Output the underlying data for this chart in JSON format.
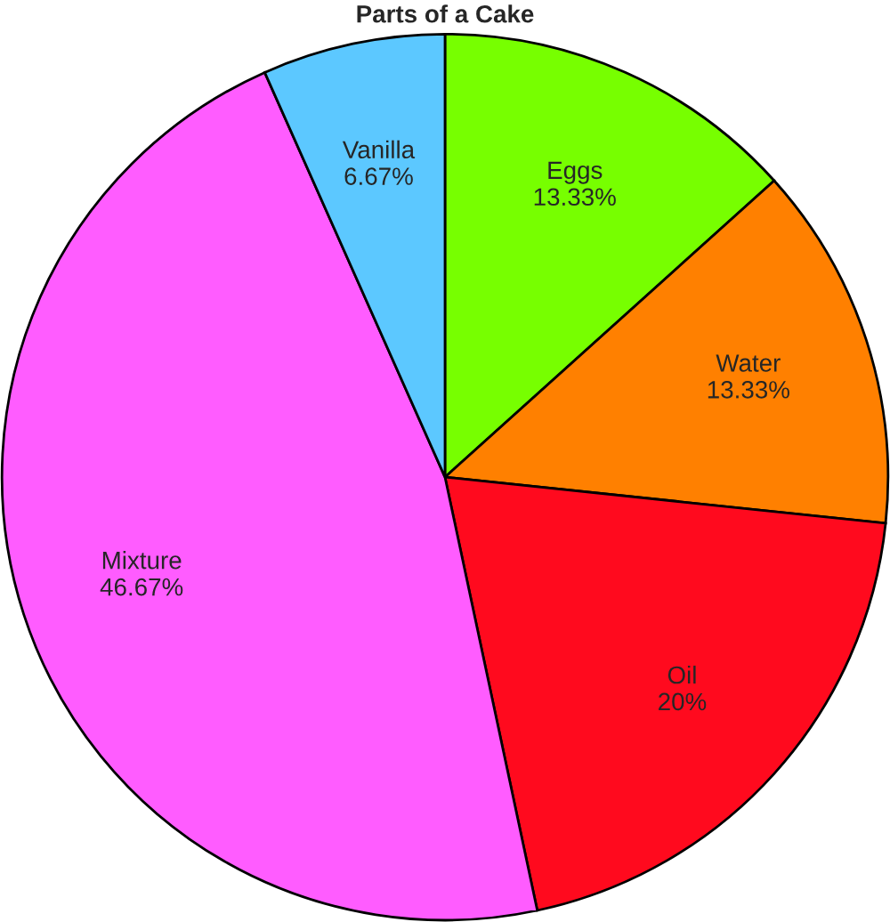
{
  "chart_data": {
    "type": "pie",
    "title": "Parts of a Cake",
    "categories": [
      "Eggs",
      "Water",
      "Oil",
      "Mixture",
      "Vanilla"
    ],
    "values": [
      13.33,
      13.33,
      20,
      46.67,
      6.67
    ],
    "value_labels": [
      "13.33%",
      "13.33%",
      "20%",
      "46.67%",
      "6.67%"
    ],
    "colors": [
      "#77ff00",
      "#ff8000",
      "#ff0a1e",
      "#ff5cff",
      "#5cc8ff"
    ]
  }
}
